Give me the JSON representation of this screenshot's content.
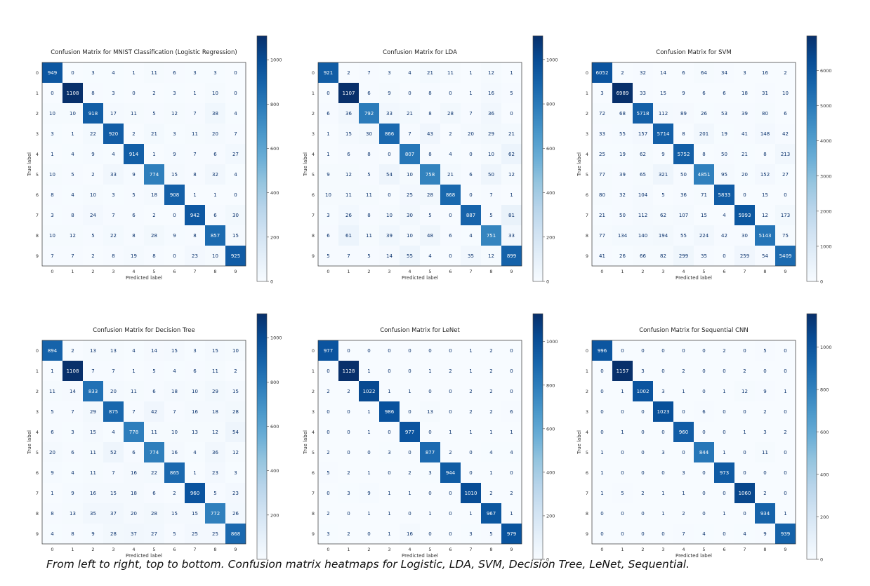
{
  "caption": "From left to right, top to bottom. Confusion matrix heatmaps for Logistic, LDA, SVM, Decision Tree, LeNet, Sequential.",
  "colors": {
    "low": "#f7fbff",
    "high": "#08306b"
  },
  "chart_data": [
    {
      "type": "heatmap",
      "title": "Confusion Matrix for MNIST Classification (Logistic Regression)",
      "xlabel": "Predicted label",
      "ylabel": "True label",
      "labels": [
        "0",
        "1",
        "2",
        "3",
        "4",
        "5",
        "6",
        "7",
        "8",
        "9"
      ],
      "colorbar": {
        "ticks": [
          0,
          200,
          400,
          600,
          800,
          1000
        ],
        "range": [
          0,
          1108
        ]
      },
      "matrix": [
        [
          949,
          0,
          3,
          4,
          1,
          11,
          6,
          3,
          3,
          0
        ],
        [
          0,
          1108,
          8,
          3,
          0,
          2,
          3,
          1,
          10,
          0
        ],
        [
          10,
          10,
          918,
          17,
          11,
          5,
          12,
          7,
          38,
          4
        ],
        [
          3,
          1,
          22,
          920,
          2,
          21,
          3,
          11,
          20,
          7
        ],
        [
          1,
          4,
          9,
          4,
          914,
          1,
          9,
          7,
          6,
          27
        ],
        [
          10,
          5,
          2,
          33,
          9,
          774,
          15,
          8,
          32,
          4
        ],
        [
          8,
          4,
          10,
          3,
          5,
          18,
          908,
          1,
          1,
          0
        ],
        [
          3,
          8,
          24,
          7,
          6,
          2,
          0,
          942,
          6,
          30
        ],
        [
          10,
          12,
          5,
          22,
          8,
          28,
          9,
          8,
          857,
          15
        ],
        [
          7,
          7,
          2,
          8,
          19,
          8,
          0,
          23,
          10,
          925
        ]
      ]
    },
    {
      "type": "heatmap",
      "title": "Confusion Matrix for LDA",
      "xlabel": "Predicted label",
      "ylabel": "True label",
      "labels": [
        "0",
        "1",
        "2",
        "3",
        "4",
        "5",
        "6",
        "7",
        "8",
        "9"
      ],
      "colorbar": {
        "ticks": [
          0,
          200,
          400,
          600,
          800,
          1000
        ],
        "range": [
          0,
          1107
        ]
      },
      "matrix": [
        [
          921,
          2,
          7,
          3,
          4,
          21,
          11,
          1,
          12,
          1
        ],
        [
          0,
          1107,
          6,
          9,
          0,
          8,
          0,
          1,
          16,
          5
        ],
        [
          6,
          36,
          792,
          33,
          21,
          8,
          28,
          7,
          36,
          0
        ],
        [
          1,
          15,
          30,
          866,
          7,
          43,
          2,
          20,
          29,
          21
        ],
        [
          1,
          6,
          8,
          0,
          807,
          8,
          4,
          0,
          10,
          62
        ],
        [
          9,
          12,
          5,
          54,
          10,
          758,
          21,
          6,
          50,
          12
        ],
        [
          10,
          11,
          11,
          0,
          25,
          28,
          868,
          0,
          7,
          1
        ],
        [
          3,
          26,
          8,
          10,
          30,
          5,
          0,
          887,
          5,
          81
        ],
        [
          6,
          61,
          11,
          39,
          10,
          48,
          6,
          4,
          751,
          33
        ],
        [
          5,
          7,
          5,
          14,
          55,
          4,
          0,
          35,
          12,
          899
        ]
      ]
    },
    {
      "type": "heatmap",
      "title": "Confusion Matrix for SVM",
      "xlabel": "Predicted label",
      "ylabel": "True label",
      "labels": [
        "0",
        "1",
        "2",
        "3",
        "4",
        "5",
        "6",
        "7",
        "8",
        "9"
      ],
      "colorbar": {
        "ticks": [
          0,
          1000,
          2000,
          3000,
          4000,
          5000,
          6000
        ],
        "range": [
          0,
          6989
        ]
      },
      "matrix": [
        [
          6052,
          2,
          32,
          14,
          6,
          64,
          34,
          3,
          16,
          2
        ],
        [
          3,
          6989,
          33,
          15,
          9,
          6,
          6,
          18,
          31,
          10
        ],
        [
          72,
          68,
          5718,
          112,
          89,
          26,
          53,
          39,
          80,
          6
        ],
        [
          33,
          55,
          157,
          5714,
          8,
          201,
          19,
          41,
          148,
          42
        ],
        [
          25,
          19,
          62,
          9,
          5752,
          8,
          50,
          21,
          8,
          213
        ],
        [
          77,
          39,
          65,
          321,
          50,
          4851,
          95,
          20,
          152,
          27
        ],
        [
          80,
          32,
          104,
          5,
          36,
          71,
          5833,
          0,
          15,
          0
        ],
        [
          21,
          50,
          112,
          62,
          107,
          15,
          4,
          5993,
          12,
          173
        ],
        [
          77,
          134,
          140,
          194,
          55,
          224,
          42,
          30,
          5143,
          75
        ],
        [
          41,
          26,
          66,
          82,
          299,
          35,
          0,
          259,
          54,
          5409
        ]
      ]
    },
    {
      "type": "heatmap",
      "title": "Confusion Matrix for Decision Tree",
      "xlabel": "Predicted label",
      "ylabel": "True label",
      "labels": [
        "0",
        "1",
        "2",
        "3",
        "4",
        "5",
        "6",
        "7",
        "8",
        "9"
      ],
      "colorbar": {
        "ticks": [
          200,
          400,
          600,
          800,
          1000
        ],
        "range": [
          0,
          1108
        ]
      },
      "matrix": [
        [
          894,
          2,
          13,
          13,
          4,
          14,
          15,
          3,
          15,
          10
        ],
        [
          1,
          1108,
          7,
          7,
          1,
          5,
          4,
          6,
          11,
          2
        ],
        [
          11,
          14,
          833,
          20,
          11,
          6,
          18,
          10,
          29,
          15
        ],
        [
          5,
          7,
          29,
          875,
          7,
          42,
          7,
          16,
          18,
          28
        ],
        [
          6,
          3,
          15,
          4,
          778,
          11,
          10,
          13,
          12,
          54
        ],
        [
          20,
          6,
          11,
          52,
          6,
          774,
          16,
          4,
          36,
          12
        ],
        [
          9,
          4,
          11,
          7,
          16,
          22,
          865,
          1,
          23,
          3
        ],
        [
          1,
          9,
          16,
          15,
          18,
          6,
          2,
          960,
          5,
          23
        ],
        [
          8,
          13,
          35,
          37,
          20,
          28,
          15,
          15,
          772,
          26
        ],
        [
          4,
          8,
          9,
          28,
          37,
          27,
          5,
          25,
          25,
          868
        ]
      ]
    },
    {
      "type": "heatmap",
      "title": "Confusion Matrix for LeNet",
      "xlabel": "Predicted label",
      "ylabel": "True label",
      "labels": [
        "0",
        "1",
        "2",
        "3",
        "4",
        "5",
        "6",
        "7",
        "8",
        "9"
      ],
      "colorbar": {
        "ticks": [
          0,
          200,
          400,
          600,
          800,
          1000
        ],
        "range": [
          0,
          1128
        ]
      },
      "matrix": [
        [
          977,
          0,
          0,
          0,
          0,
          0,
          0,
          1,
          2,
          0
        ],
        [
          0,
          1128,
          1,
          0,
          0,
          1,
          2,
          1,
          2,
          0
        ],
        [
          2,
          2,
          1022,
          1,
          1,
          0,
          0,
          2,
          2,
          0
        ],
        [
          0,
          0,
          1,
          986,
          0,
          13,
          0,
          2,
          2,
          6
        ],
        [
          0,
          0,
          1,
          0,
          977,
          0,
          1,
          1,
          1,
          1
        ],
        [
          2,
          0,
          0,
          3,
          0,
          877,
          2,
          0,
          4,
          4
        ],
        [
          5,
          2,
          1,
          0,
          2,
          3,
          944,
          0,
          1,
          0
        ],
        [
          0,
          3,
          9,
          1,
          1,
          0,
          0,
          1010,
          2,
          2
        ],
        [
          2,
          0,
          1,
          1,
          0,
          1,
          0,
          1,
          967,
          1
        ],
        [
          3,
          2,
          0,
          1,
          16,
          0,
          0,
          3,
          5,
          979
        ]
      ]
    },
    {
      "type": "heatmap",
      "title": "Confusion Matrix for Sequential CNN",
      "xlabel": "Predicted label",
      "ylabel": "True label",
      "labels": [
        "0",
        "1",
        "2",
        "3",
        "4",
        "5",
        "6",
        "7",
        "8",
        "9"
      ],
      "colorbar": {
        "ticks": [
          0,
          200,
          400,
          600,
          800,
          1000
        ],
        "range": [
          0,
          1157
        ]
      },
      "matrix": [
        [
          996,
          0,
          0,
          0,
          0,
          0,
          2,
          0,
          5,
          0
        ],
        [
          0,
          1157,
          3,
          0,
          2,
          0,
          0,
          2,
          0,
          0
        ],
        [
          0,
          1,
          1002,
          3,
          1,
          0,
          1,
          12,
          9,
          1
        ],
        [
          0,
          0,
          0,
          1023,
          0,
          6,
          0,
          0,
          2,
          0
        ],
        [
          0,
          1,
          0,
          0,
          960,
          0,
          0,
          1,
          3,
          2
        ],
        [
          1,
          0,
          0,
          3,
          0,
          844,
          1,
          0,
          11,
          0
        ],
        [
          1,
          0,
          0,
          0,
          3,
          0,
          973,
          0,
          0,
          0
        ],
        [
          1,
          5,
          2,
          1,
          1,
          0,
          0,
          1060,
          2,
          0
        ],
        [
          0,
          0,
          0,
          1,
          2,
          0,
          1,
          0,
          934,
          1
        ],
        [
          0,
          0,
          0,
          0,
          7,
          4,
          0,
          4,
          9,
          939
        ]
      ]
    }
  ]
}
